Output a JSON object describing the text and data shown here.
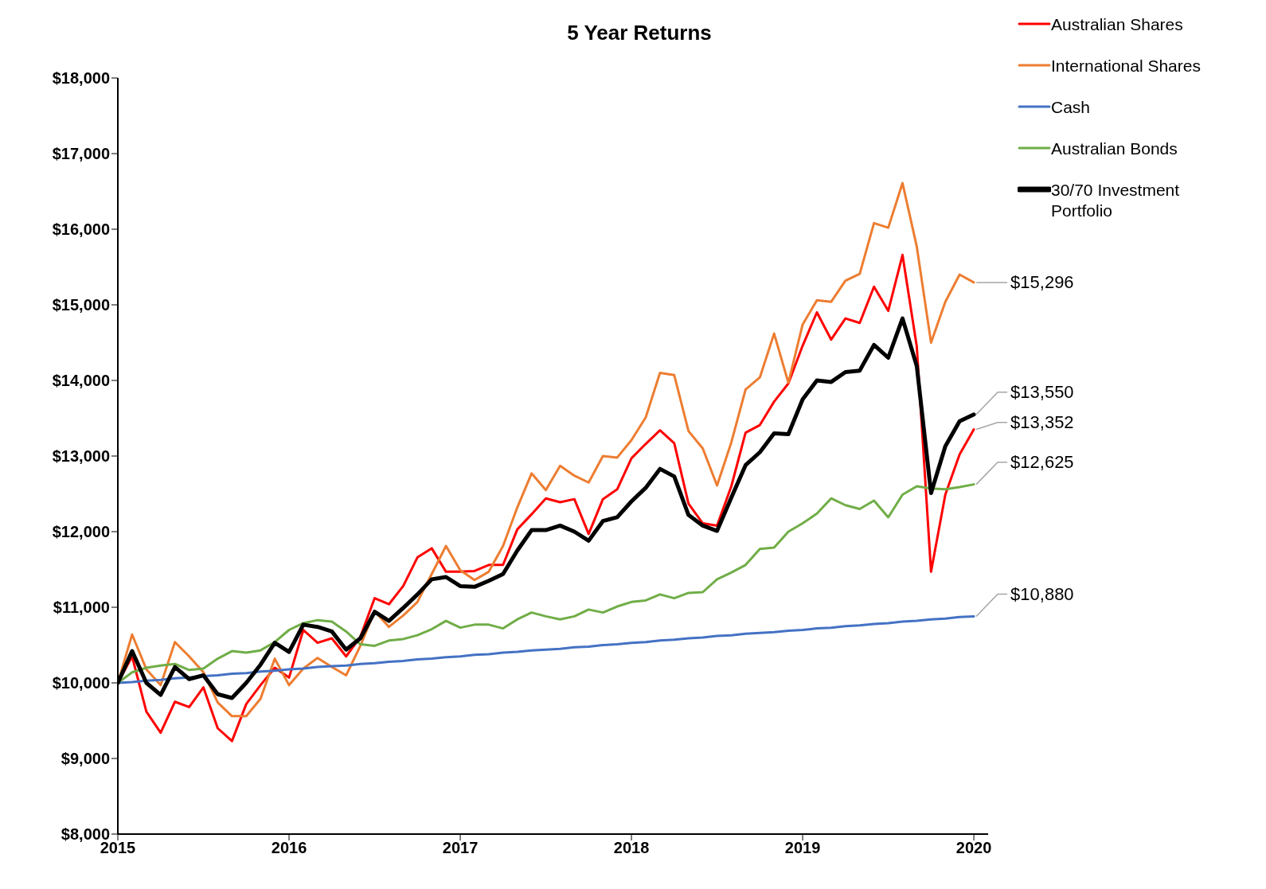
{
  "chart_data": {
    "type": "line",
    "title": "5 Year Returns",
    "x": [
      "2015-01",
      "2015-02",
      "2015-03",
      "2015-04",
      "2015-05",
      "2015-06",
      "2015-07",
      "2015-08",
      "2015-09",
      "2015-10",
      "2015-11",
      "2015-12",
      "2016-01",
      "2016-02",
      "2016-03",
      "2016-04",
      "2016-05",
      "2016-06",
      "2016-07",
      "2016-08",
      "2016-09",
      "2016-10",
      "2016-11",
      "2016-12",
      "2017-01",
      "2017-02",
      "2017-03",
      "2017-04",
      "2017-05",
      "2017-06",
      "2017-07",
      "2017-08",
      "2017-09",
      "2017-10",
      "2017-11",
      "2017-12",
      "2018-01",
      "2018-02",
      "2018-03",
      "2018-04",
      "2018-05",
      "2018-06",
      "2018-07",
      "2018-08",
      "2018-09",
      "2018-10",
      "2018-11",
      "2018-12",
      "2019-01",
      "2019-02",
      "2019-03",
      "2019-04",
      "2019-05",
      "2019-06",
      "2019-07",
      "2019-08",
      "2019-09",
      "2019-10",
      "2019-11",
      "2019-12",
      "2020-01"
    ],
    "series": [
      {
        "name": "Australian Shares",
        "color": "#ff0000",
        "values": [
          10000,
          10350,
          9620,
          9340,
          9750,
          9680,
          9940,
          9400,
          9230,
          9720,
          9970,
          10200,
          10070,
          10700,
          10530,
          10590,
          10350,
          10610,
          11120,
          11040,
          11280,
          11660,
          11780,
          11470,
          11470,
          11480,
          11560,
          11560,
          12030,
          12230,
          12440,
          12390,
          12430,
          11970,
          12430,
          12560,
          12970,
          13160,
          13340,
          13170,
          12370,
          12110,
          12080,
          12600,
          13310,
          13410,
          13720,
          13960,
          14460,
          14900,
          14540,
          14820,
          14760,
          15240,
          14920,
          15660,
          14450,
          11470,
          12490,
          13020,
          13352
        ]
      },
      {
        "name": "International Shares",
        "color": "#ed7d31",
        "values": [
          10000,
          10640,
          10180,
          9970,
          10540,
          10350,
          10140,
          9740,
          9560,
          9560,
          9790,
          10320,
          9970,
          10190,
          10330,
          10210,
          10100,
          10490,
          10950,
          10740,
          10890,
          11070,
          11440,
          11810,
          11490,
          11360,
          11470,
          11810,
          12320,
          12770,
          12550,
          12870,
          12740,
          12650,
          13000,
          12980,
          13210,
          13510,
          14100,
          14070,
          13330,
          13100,
          12610,
          13180,
          13880,
          14040,
          14620,
          13970,
          14740,
          15060,
          15040,
          15320,
          15410,
          16080,
          16020,
          16610,
          15770,
          14500,
          15040,
          15400,
          15296
        ]
      },
      {
        "name": "Cash",
        "color": "#4472c4",
        "values": [
          10000,
          10010,
          10030,
          10040,
          10060,
          10070,
          10090,
          10100,
          10120,
          10130,
          10150,
          10160,
          10180,
          10190,
          10210,
          10220,
          10230,
          10250,
          10260,
          10280,
          10290,
          10310,
          10320,
          10340,
          10350,
          10370,
          10380,
          10400,
          10410,
          10430,
          10440,
          10450,
          10470,
          10480,
          10500,
          10510,
          10530,
          10540,
          10560,
          10570,
          10590,
          10600,
          10620,
          10630,
          10650,
          10660,
          10670,
          10690,
          10700,
          10720,
          10730,
          10750,
          10760,
          10780,
          10790,
          10810,
          10820,
          10840,
          10850,
          10870,
          10880
        ]
      },
      {
        "name": "Australian Bonds",
        "color": "#70ad47",
        "values": [
          10000,
          10140,
          10200,
          10230,
          10250,
          10170,
          10190,
          10320,
          10420,
          10400,
          10430,
          10540,
          10700,
          10790,
          10830,
          10810,
          10680,
          10510,
          10490,
          10560,
          10580,
          10630,
          10710,
          10820,
          10730,
          10770,
          10770,
          10720,
          10840,
          10930,
          10880,
          10840,
          10880,
          10970,
          10930,
          11010,
          11070,
          11090,
          11170,
          11120,
          11190,
          11200,
          11370,
          11460,
          11560,
          11770,
          11790,
          12000,
          12110,
          12240,
          12440,
          12350,
          12300,
          12410,
          12190,
          12490,
          12600,
          12570,
          12560,
          12590,
          12625
        ]
      },
      {
        "name": "30/70 Investment Portfolio",
        "color": "#000000",
        "values": [
          10000,
          10420,
          10000,
          9840,
          10210,
          10050,
          10100,
          9850,
          9800,
          10000,
          10240,
          10530,
          10410,
          10770,
          10740,
          10680,
          10440,
          10590,
          10940,
          10820,
          10990,
          11170,
          11370,
          11400,
          11280,
          11270,
          11350,
          11440,
          11750,
          12020,
          12020,
          12080,
          12000,
          11880,
          12140,
          12190,
          12400,
          12580,
          12830,
          12730,
          12220,
          12080,
          12010,
          12450,
          12880,
          13050,
          13300,
          13290,
          13750,
          14000,
          13980,
          14110,
          14130,
          14470,
          14300,
          14820,
          14190,
          12510,
          13130,
          13460,
          13550
        ]
      }
    ],
    "xlim": [
      "2015-01",
      "2020-02"
    ],
    "xticks": [
      {
        "value": "2015",
        "label": "2015"
      },
      {
        "value": "2016",
        "label": "2016"
      },
      {
        "value": "2017",
        "label": "2017"
      },
      {
        "value": "2018",
        "label": "2018"
      },
      {
        "value": "2019",
        "label": "2019"
      },
      {
        "value": "2020",
        "label": "2020"
      }
    ],
    "ylim": [
      8000,
      18000
    ],
    "yticks": [
      {
        "value": 8000,
        "label": "$8,000"
      },
      {
        "value": 9000,
        "label": "$9,000"
      },
      {
        "value": 10000,
        "label": "$10,000"
      },
      {
        "value": 11000,
        "label": "$11,000"
      },
      {
        "value": 12000,
        "label": "$12,000"
      },
      {
        "value": 13000,
        "label": "$13,000"
      },
      {
        "value": 14000,
        "label": "$14,000"
      },
      {
        "value": 15000,
        "label": "$15,000"
      },
      {
        "value": 16000,
        "label": "$16,000"
      },
      {
        "value": 17000,
        "label": "$17,000"
      },
      {
        "value": 18000,
        "label": "$18,000"
      }
    ],
    "grid": false,
    "legend": "top right",
    "annotations": [
      {
        "text": "$15,296",
        "x": "2020-01",
        "y": 15296
      },
      {
        "text": "$13,550",
        "x": "2020-01",
        "y": 13550
      },
      {
        "text": "$13,352",
        "x": "2020-01",
        "y": 13352
      },
      {
        "text": "$12,625",
        "x": "2020-01",
        "y": 12625
      },
      {
        "text": "$10,880",
        "x": "2020-01",
        "y": 10880
      }
    ]
  }
}
